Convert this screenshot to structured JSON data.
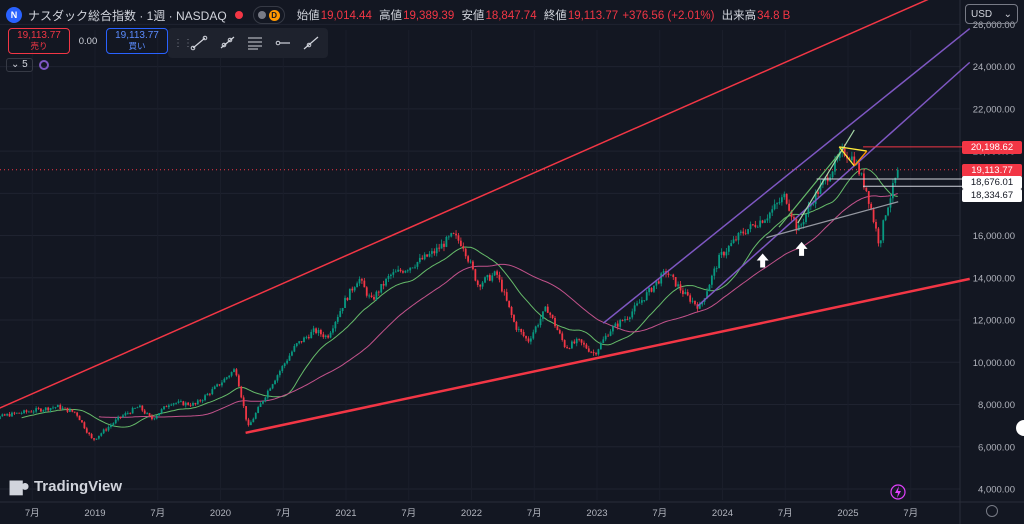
{
  "header": {
    "title": "ナスダック総合指数 · 1週 · NASDAQ",
    "pill_label": "D",
    "ohlc": [
      {
        "label": "始値",
        "value": "19,014.44"
      },
      {
        "label": "高値",
        "value": "19,389.39"
      },
      {
        "label": "安値",
        "value": "18,847.74"
      },
      {
        "label": "終値",
        "value": "19,113.77"
      },
      {
        "label": "",
        "value": "+376.56 (+2.01%)"
      },
      {
        "label": "出来高",
        "value": "34.8 B"
      }
    ]
  },
  "trade": {
    "sell_price": "19,113.77",
    "sell_label": "売り",
    "spread": "0.00",
    "buy_price": "19,113.77",
    "buy_label": "買い"
  },
  "indicators": {
    "count": "5"
  },
  "currency": {
    "label": "USD"
  },
  "logo": {
    "text": "TradingView"
  },
  "price_tags": [
    {
      "name": "level-20198",
      "value": "20,198.62",
      "bg": "#f23645",
      "fg": "#ffffff"
    },
    {
      "name": "last-price",
      "value": "19,113.77",
      "bg": "#f23645",
      "fg": "#ffffff"
    },
    {
      "name": "level-18676",
      "value": "18,676.01",
      "bg": "#ffffff",
      "fg": "#131722"
    },
    {
      "name": "level-18334",
      "value": "18,334.67",
      "bg": "#ffffff",
      "fg": "#131722"
    }
  ],
  "colors": {
    "up": "#089981",
    "down": "#f23645",
    "accent": "#2962ff",
    "background": "#131722"
  },
  "chart_data": {
    "type": "candlestick",
    "interval": "1週",
    "ylim": [
      3500,
      27000
    ],
    "y_ticks": [
      "4,000.00",
      "6,000.00",
      "8,000.00",
      "10,000.00",
      "12,000.00",
      "14,000.00",
      "16,000.00",
      "18,000.00",
      "20,000.00",
      "22,000.00",
      "24,000.00",
      "26,000.00"
    ],
    "x_ticks": [
      {
        "label": "7月",
        "date": "2018.50"
      },
      {
        "label": "2019",
        "date": "2019.00"
      },
      {
        "label": "7月",
        "date": "2019.50"
      },
      {
        "label": "2020",
        "date": "2020.00"
      },
      {
        "label": "7月",
        "date": "2020.50"
      },
      {
        "label": "2021",
        "date": "2021.00"
      },
      {
        "label": "7月",
        "date": "2021.50"
      },
      {
        "label": "2022",
        "date": "2022.00"
      },
      {
        "label": "7月",
        "date": "2022.50"
      },
      {
        "label": "2023",
        "date": "2023.00"
      },
      {
        "label": "7月",
        "date": "2023.50"
      },
      {
        "label": "2024",
        "date": "2024.00"
      },
      {
        "label": "7月",
        "date": "2024.50"
      },
      {
        "label": "2025",
        "date": "2025.00"
      },
      {
        "label": "7月",
        "date": "2025.50"
      }
    ],
    "price_path": [
      [
        2018.05,
        7100
      ],
      [
        2018.3,
        7500
      ],
      [
        2018.7,
        7900
      ],
      [
        2018.85,
        7600
      ],
      [
        2018.98,
        6300
      ],
      [
        2019.2,
        7400
      ],
      [
        2019.35,
        7900
      ],
      [
        2019.45,
        7300
      ],
      [
        2019.6,
        8100
      ],
      [
        2019.8,
        8000
      ],
      [
        2019.98,
        8900
      ],
      [
        2020.12,
        9700
      ],
      [
        2020.22,
        6900
      ],
      [
        2020.4,
        8900
      ],
      [
        2020.6,
        10800
      ],
      [
        2020.75,
        11500
      ],
      [
        2020.85,
        11200
      ],
      [
        2020.99,
        12900
      ],
      [
        2021.1,
        14000
      ],
      [
        2021.2,
        12900
      ],
      [
        2021.35,
        14100
      ],
      [
        2021.5,
        14500
      ],
      [
        2021.7,
        15200
      ],
      [
        2021.85,
        16000
      ],
      [
        2021.93,
        15600
      ],
      [
        2022.05,
        13700
      ],
      [
        2022.2,
        14200
      ],
      [
        2022.35,
        11700
      ],
      [
        2022.45,
        11000
      ],
      [
        2022.6,
        12600
      ],
      [
        2022.75,
        10700
      ],
      [
        2022.85,
        11000
      ],
      [
        2022.98,
        10400
      ],
      [
        2023.1,
        11500
      ],
      [
        2023.25,
        12200
      ],
      [
        2023.45,
        13600
      ],
      [
        2023.55,
        14300
      ],
      [
        2023.7,
        13200
      ],
      [
        2023.82,
        12600
      ],
      [
        2023.98,
        15000
      ],
      [
        2024.15,
        16100
      ],
      [
        2024.35,
        16900
      ],
      [
        2024.5,
        17900
      ],
      [
        2024.6,
        16200
      ],
      [
        2024.72,
        17700
      ],
      [
        2024.88,
        19200
      ],
      [
        2024.96,
        20000
      ],
      [
        2025.05,
        19600
      ],
      [
        2025.15,
        18100
      ],
      [
        2025.25,
        15600
      ],
      [
        2025.3,
        17100
      ],
      [
        2025.4,
        19100
      ]
    ],
    "last_close": 19113.77,
    "levels": [
      20198.62,
      19113.77,
      18676.01,
      18334.67
    ]
  }
}
